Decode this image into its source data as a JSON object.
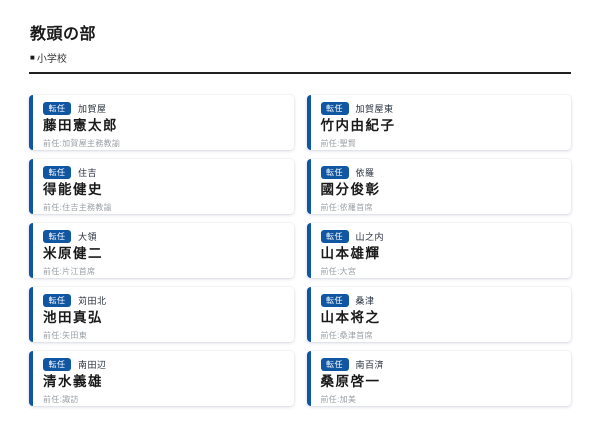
{
  "header": {
    "title": "教頭の部",
    "subtitle_bullet": "■",
    "subtitle": "小学校"
  },
  "colors": {
    "accent_blue": "#1156a3",
    "divider_dark": "#222222",
    "muted_gray": "#9aa0a6"
  },
  "main": {
    "cards": [
      {
        "badge": "転任",
        "school": "加賀屋",
        "name": "藤田憲太郎",
        "prev": "前任:加賀屋主務教諭"
      },
      {
        "badge": "転任",
        "school": "加賀屋東",
        "name": "竹内由紀子",
        "prev": "前任:聖賢"
      },
      {
        "badge": "転任",
        "school": "住吉",
        "name": "得能健史",
        "prev": "前任:住吉主務教諭"
      },
      {
        "badge": "転任",
        "school": "依羅",
        "name": "國分俊彰",
        "prev": "前任:依羅首席"
      },
      {
        "badge": "転任",
        "school": "大領",
        "name": "米原健二",
        "prev": "前任:片江首席"
      },
      {
        "badge": "転任",
        "school": "山之内",
        "name": "山本雄輝",
        "prev": "前任:大宮"
      },
      {
        "badge": "転任",
        "school": "苅田北",
        "name": "池田真弘",
        "prev": "前任:矢田東"
      },
      {
        "badge": "転任",
        "school": "桑津",
        "name": "山本将之",
        "prev": "前任:桑津首席"
      },
      {
        "badge": "転任",
        "school": "南田辺",
        "name": "清水義雄",
        "prev": "前任:諏訪"
      },
      {
        "badge": "転任",
        "school": "南百済",
        "name": "桑原啓一",
        "prev": "前任:加美"
      }
    ]
  }
}
